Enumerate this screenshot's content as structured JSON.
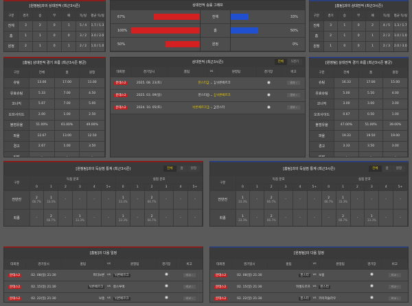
{
  "h2h_away": {
    "title": "[원정팀]과의 상대전적 (최근3시즌)",
    "headers": [
      "구분",
      "경기",
      "승",
      "무",
      "패",
      "득/실",
      "평균 득/실"
    ],
    "rows": [
      [
        "전체",
        "3",
        "2",
        "0",
        "1",
        "5 / 4",
        "1.7 / 1.3"
      ],
      [
        "홈",
        "1",
        "1",
        "0",
        "0",
        "3 / 2",
        "3.0 / 2.0"
      ],
      [
        "원정",
        "2",
        "1",
        "0",
        "1",
        "2 / 2",
        "1.0 / 1.0"
      ]
    ]
  },
  "h2h_home": {
    "title": "[홈팀]과의 상대전적 (최근3시즌)",
    "headers": [
      "구분",
      "경기",
      "승",
      "무",
      "패",
      "득/실",
      "평균 득/실"
    ],
    "rows": [
      [
        "전체",
        "3",
        "1",
        "0",
        "2",
        "4 / 5",
        "1.3 / 1.7"
      ],
      [
        "홈",
        "2",
        "1",
        "0",
        "1",
        "2 / 2",
        "1.0 / 1.0"
      ],
      [
        "원정",
        "1",
        "0",
        "0",
        "1",
        "2 / 3",
        "2.0 / 3.0"
      ]
    ]
  },
  "graph": {
    "title": "상대전적 승률 그래프",
    "colors": {
      "left": "#d42020",
      "right": "#2050d0"
    },
    "rows": [
      {
        "label": "전체",
        "left": "67%",
        "left_value": 67,
        "right": "33%",
        "right_value": 33
      },
      {
        "label": "홈",
        "left": "100%",
        "left_value": 100,
        "right": "50%",
        "right_value": 50
      },
      {
        "label": "원정",
        "left": "50%",
        "left_value": 50,
        "right": "0%",
        "right_value": 0
      }
    ]
  },
  "flow_home": {
    "title": "[홈팀] 상대전적 경기 흐름 (최근3시즌 평균)",
    "headers": [
      "구분",
      "전체",
      "홈",
      "원정"
    ],
    "rows": [
      [
        "슈팅",
        "13.00",
        "17.00",
        "11.00"
      ],
      [
        "유효슈팅",
        "5.33",
        "7.00",
        "4.50"
      ],
      [
        "코너킥",
        "5.67",
        "7.00",
        "5.00"
      ],
      [
        "오프사이드",
        "2.00",
        "1.00",
        "2.50"
      ],
      [
        "볼점유율",
        "51.00%",
        "61.00%",
        "49.00%"
      ],
      [
        "파울",
        "12.67",
        "13.00",
        "12.50"
      ],
      [
        "경고",
        "2.67",
        "1.00",
        "3.50"
      ],
      [
        "퇴장",
        "-",
        "-",
        "-"
      ]
    ]
  },
  "flow_away": {
    "title": "[원정팀] 상대전적 경기 흐름 (최근3시즌 평균)",
    "headers": [
      "구분",
      "전체",
      "홈",
      "원정"
    ],
    "rows": [
      [
        "슈팅",
        "16.33",
        "17.00",
        "15.00"
      ],
      [
        "유효슈팅",
        "5.00",
        "5.50",
        "4.00"
      ],
      [
        "코너킥",
        "3.00",
        "3.00",
        "3.00"
      ],
      [
        "오프사이드",
        "0.67",
        "0.50",
        "1.00"
      ],
      [
        "볼점유율",
        "47.00%",
        "51.00%",
        "39.00%"
      ],
      [
        "파울",
        "19.33",
        "19.50",
        "19.00"
      ],
      [
        "경고",
        "3.33",
        "3.50",
        "3.00"
      ],
      [
        "퇴장",
        "-",
        "-",
        "-"
      ]
    ]
  },
  "matches": {
    "title": "상대전적 (최근3시즌)",
    "tabs": [
      "전체",
      "5경기"
    ],
    "headers": [
      "대회명",
      "경기일시",
      "홈팀",
      "vs",
      "원정팀",
      "경기장",
      "비고"
    ],
    "rows": [
      {
        "league": "분데스2",
        "date": "2025. 08. 23(토)",
        "home": "뮌스터",
        "hs": "2",
        "as": "1",
        "away": "뉘른베르크",
        "winner": "home",
        "btn": "결과 ›"
      },
      {
        "league": "분데스2",
        "date": "2025. 03. 09(일)",
        "home": "뮌스터",
        "hs": "0",
        "as": "1",
        "away": "뉘른베르크",
        "winner": "away",
        "btn": "결과 ›"
      },
      {
        "league": "분데스2",
        "date": "2024. 10. 05(토)",
        "home": "뉘른베르크",
        "hs": "3",
        "as": "2",
        "away": "뮌스터",
        "winner": "home",
        "btn": "결과 ›"
      }
    ]
  },
  "goals_away": {
    "title": "[원정팀]과의 득실점 통계 (최근3시즌)",
    "tabs": [
      "전체",
      "홈",
      "원정"
    ],
    "label": "구분",
    "scored": "득점 분포",
    "conceded": "실점 분포",
    "cols": [
      "0",
      "1",
      "2",
      "3",
      "4",
      "5+"
    ],
    "rows": [
      {
        "label": "전반전",
        "cells": [
          [
            "2",
            "66.7%"
          ],
          [
            "1",
            "33.3%"
          ],
          [
            "-"
          ],
          [
            "-"
          ],
          [
            "-"
          ],
          [
            "-"
          ],
          [
            "1",
            "33.3%"
          ],
          [
            "-"
          ],
          [
            "2",
            "66.7%"
          ],
          [
            "-"
          ],
          [
            "-"
          ],
          [
            "-"
          ]
        ]
      },
      {
        "label": "최종",
        "cells": [
          [
            "-"
          ],
          [
            "2",
            "66.7%"
          ],
          [
            "-"
          ],
          [
            "1",
            "33.3%"
          ],
          [
            "-"
          ],
          [
            "-"
          ],
          [
            "1",
            "33.3%"
          ],
          [
            "-"
          ],
          [
            "2",
            "66.7%"
          ],
          [
            "-"
          ],
          [
            "-"
          ],
          [
            "-"
          ]
        ]
      }
    ]
  },
  "goals_home": {
    "title": "[홈팀]과의 득실점 통계 (최근3시즌)",
    "tabs": [
      "전체",
      "홈",
      "원정"
    ],
    "label": "구분",
    "scored": "득점 분포",
    "conceded": "실점 분포",
    "cols": [
      "0",
      "1",
      "2",
      "3",
      "4",
      "5+"
    ],
    "rows": [
      {
        "label": "전반전",
        "cells": [
          [
            "1",
            "33.3%"
          ],
          [
            "-"
          ],
          [
            "2",
            "66.7%"
          ],
          [
            "-"
          ],
          [
            "-"
          ],
          [
            "-"
          ],
          [
            "2",
            "66.7%"
          ],
          [
            "1",
            "33.3%"
          ],
          [
            "-"
          ],
          [
            "-"
          ],
          [
            "-"
          ],
          [
            "-"
          ]
        ]
      },
      {
        "label": "최종",
        "cells": [
          [
            "1",
            "33.3%"
          ],
          [
            "-"
          ],
          [
            "2",
            "66.7%"
          ],
          [
            "-"
          ],
          [
            "-"
          ],
          [
            "-"
          ],
          [
            "-"
          ],
          [
            "2",
            "66.7%"
          ],
          [
            "-"
          ],
          [
            "1",
            "33.3%"
          ],
          [
            "-"
          ],
          [
            "-"
          ]
        ]
      }
    ]
  },
  "next_home": {
    "title": "[홈팀]의 다음 일정",
    "headers": [
      "대회명",
      "경기일시",
      "홈팀",
      "vs",
      "원정팀",
      "경기장",
      "비고"
    ],
    "rows": [
      {
        "league": "분데스2",
        "date": "02. 08(일) 21:30",
        "home": "파더보른",
        "away": "뉘른베르크",
        "hl": "away",
        "btn": "비교 ›"
      },
      {
        "league": "분데스2",
        "date": "02. 15(일) 21:30",
        "home": "뉘른베르크",
        "away": "칼스루에",
        "hl": "home",
        "btn": "비교 ›"
      },
      {
        "league": "분데스2",
        "date": "02. 22(일) 21:30",
        "home": "보훔",
        "away": "뉘른베르크",
        "hl": "away",
        "btn": "비교 ›"
      }
    ]
  },
  "next_away": {
    "title": "[원정팀]의 다음 일정",
    "headers": [
      "대회명",
      "경기일시",
      "홈팀",
      "vs",
      "원정팀",
      "경기장",
      "비고"
    ],
    "rows": [
      {
        "league": "분데스2",
        "date": "02. 08(일) 21:30",
        "home": "뮌스터",
        "away": "보훔",
        "hl": "home",
        "btn": "비교 ›"
      },
      {
        "league": "분데스2",
        "date": "02. 15(일) 21:30",
        "home": "뒤셀도르프",
        "away": "뮌스터",
        "hl": "away",
        "btn": "비교 ›"
      },
      {
        "league": "분데스2",
        "date": "02. 22(일) 21:30",
        "home": "뮌스터",
        "away": "카이저슬라우",
        "hl": "home",
        "btn": "비교 ›"
      }
    ]
  }
}
